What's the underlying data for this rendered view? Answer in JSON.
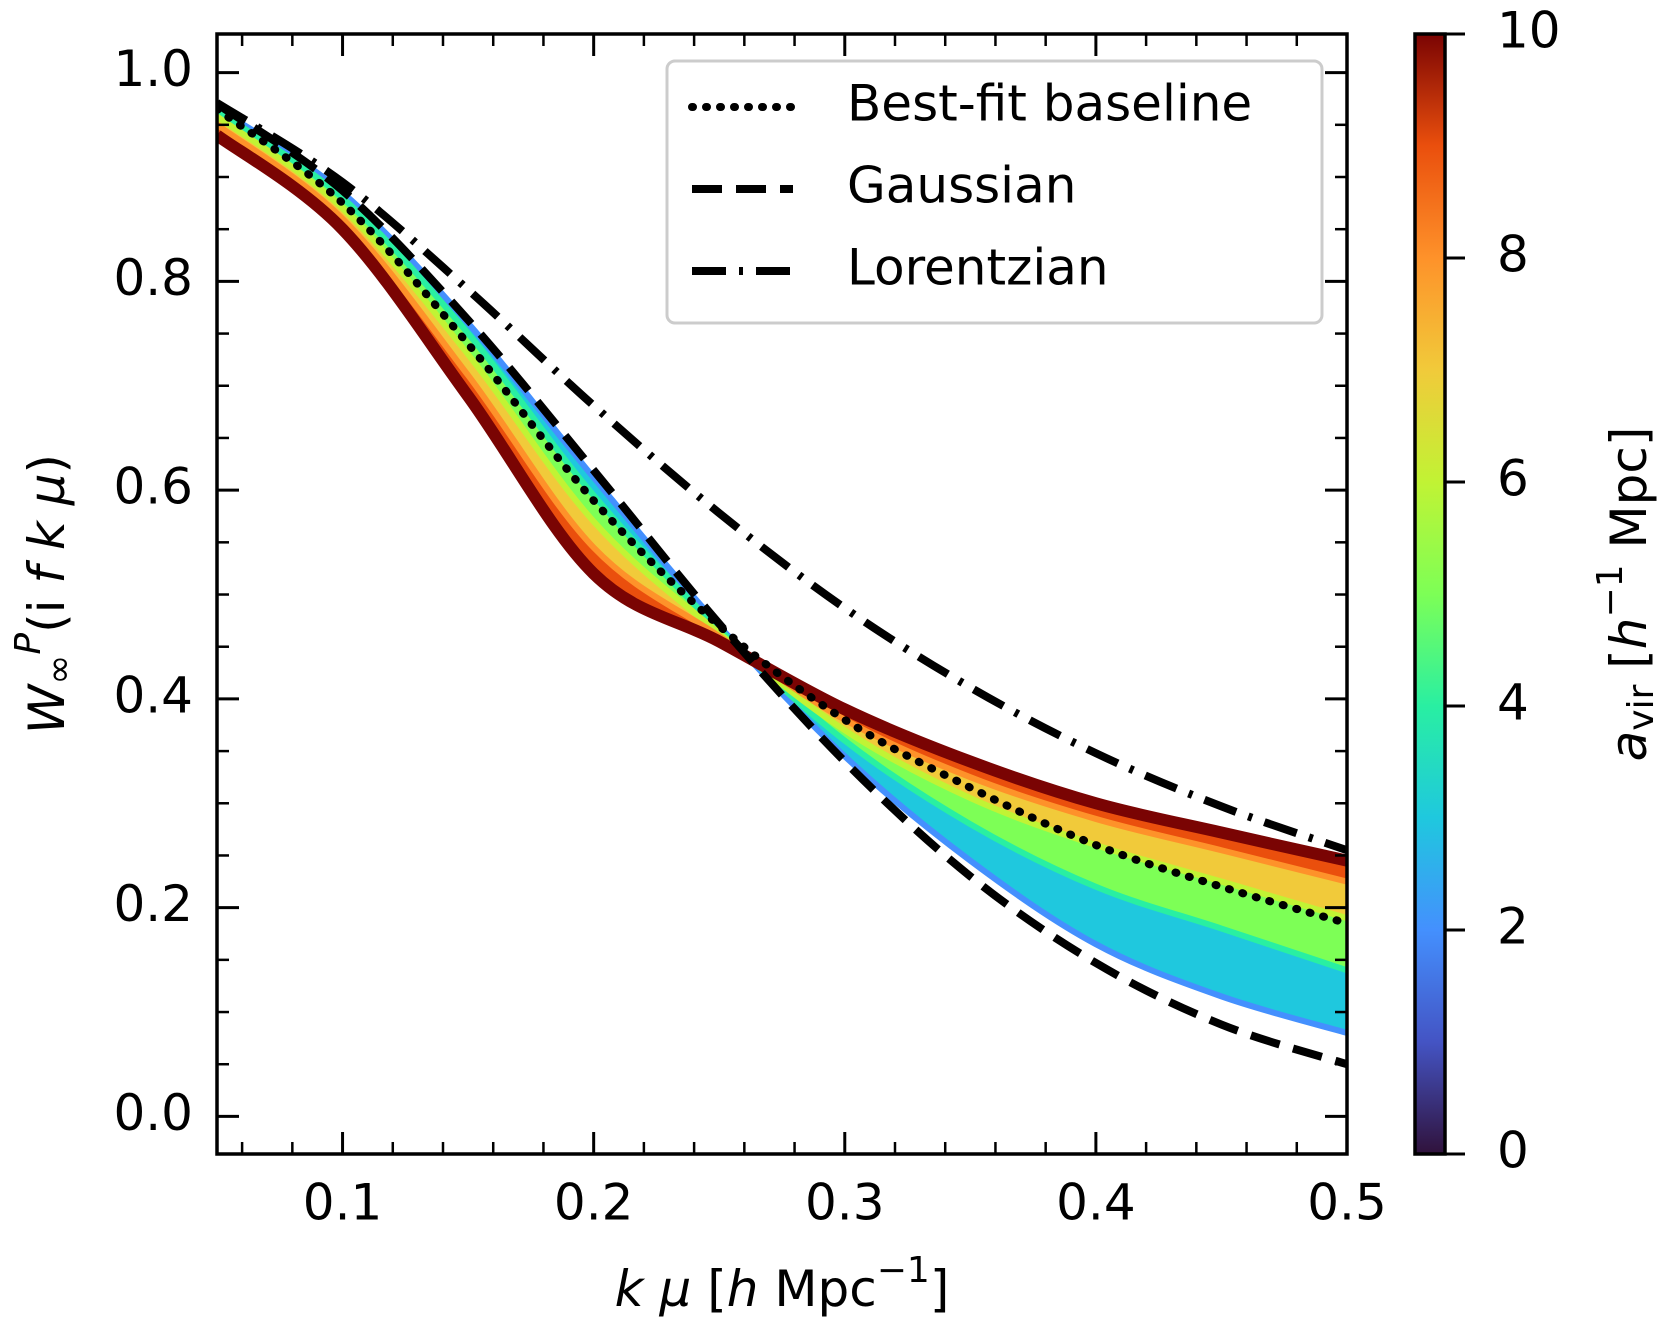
{
  "chart_data": {
    "type": "line",
    "x": [
      0.05,
      0.1,
      0.15,
      0.2,
      0.25,
      0.3,
      0.35,
      0.4,
      0.45,
      0.5
    ],
    "series": [
      {
        "name": "Best-fit baseline",
        "color": "#000000",
        "dash": "dotted",
        "values": [
          0.965,
          0.875,
          0.74,
          0.59,
          0.47,
          0.38,
          0.315,
          0.26,
          0.22,
          0.185
        ]
      },
      {
        "name": "Gaussian",
        "color": "#000000",
        "dash": "dashed",
        "values": [
          0.97,
          0.887,
          0.763,
          0.619,
          0.472,
          0.34,
          0.23,
          0.147,
          0.088,
          0.05
        ]
      },
      {
        "name": "Lorentzian",
        "color": "#000000",
        "dash": "dashdot",
        "values": [
          0.971,
          0.895,
          0.792,
          0.681,
          0.578,
          0.487,
          0.411,
          0.348,
          0.297,
          0.255
        ]
      }
    ],
    "band": [
      {
        "a_vir": 2,
        "values": [
          0.966,
          0.885,
          0.76,
          0.612,
          0.47,
          0.345,
          0.245,
          0.165,
          0.115,
          0.08
        ]
      },
      {
        "a_vir": 4,
        "values": [
          0.963,
          0.88,
          0.75,
          0.595,
          0.467,
          0.36,
          0.28,
          0.22,
          0.18,
          0.14
        ]
      },
      {
        "a_vir": 6,
        "values": [
          0.958,
          0.87,
          0.73,
          0.57,
          0.463,
          0.37,
          0.305,
          0.26,
          0.225,
          0.19
        ]
      },
      {
        "a_vir": 8,
        "values": [
          0.95,
          0.86,
          0.71,
          0.545,
          0.46,
          0.38,
          0.325,
          0.285,
          0.255,
          0.225
        ]
      },
      {
        "a_vir": 10,
        "values": [
          0.94,
          0.85,
          0.69,
          0.52,
          0.455,
          0.39,
          0.34,
          0.3,
          0.272,
          0.245
        ]
      }
    ],
    "xlim": [
      0.05,
      0.5
    ],
    "ylim": [
      -0.036,
      1.037
    ],
    "xticks": [
      0.1,
      0.2,
      0.3,
      0.4,
      0.5
    ],
    "yticks": [
      {
        "value": 0,
        "label": "0.0"
      },
      0.2,
      0.4,
      0.6,
      0.8,
      {
        "value": 1,
        "label": "1.0"
      }
    ],
    "xminorticks": [
      0.06,
      0.08,
      0.12,
      0.14,
      0.16,
      0.18,
      0.22,
      0.24,
      0.26,
      0.28,
      0.32,
      0.34,
      0.36,
      0.38,
      0.42,
      0.44,
      0.46,
      0.48
    ],
    "yminorticks": [
      0.05,
      0.1,
      0.15,
      0.25,
      0.3,
      0.35,
      0.45,
      0.5,
      0.55,
      0.65,
      0.7,
      0.75,
      0.85,
      0.9,
      0.95
    ],
    "xlabel": [
      {
        "text": "k",
        "italic": true
      },
      {
        "text": " μ",
        "italic": true
      },
      {
        "text": " ["
      },
      {
        "text": "h",
        "italic": true
      },
      {
        "text": " Mpc"
      },
      {
        "text": "−1",
        "shift": "sup"
      },
      {
        "text": "]"
      }
    ],
    "ylabel": [
      {
        "text": "W",
        "italic": true
      },
      {
        "text": "∞",
        "shift": "sub"
      },
      {
        "text": "P",
        "shift": "sup",
        "italic": true
      },
      {
        "text": "(i "
      },
      {
        "text": "f",
        "italic": true
      },
      {
        "text": " k",
        "italic": true
      },
      {
        "text": " μ",
        "italic": true
      },
      {
        "text": ")"
      }
    ],
    "legend": "upper right",
    "colorbar": {
      "clim": [
        0,
        10
      ],
      "ticks": [
        0,
        2,
        4,
        6,
        8,
        10
      ],
      "colormap": [
        "#30123b",
        "#4454c4",
        "#4490fe",
        "#1fc8de",
        "#29efa2",
        "#7dff56",
        "#c1f334",
        "#f1ca3a",
        "#fe922a",
        "#ea4f0d",
        "#7a0403"
      ],
      "label": [
        {
          "text": "a",
          "italic": true
        },
        {
          "text": "vir",
          "shift": "sub"
        },
        {
          "text": " ["
        },
        {
          "text": "h",
          "italic": true
        },
        {
          "text": "−1",
          "shift": "sup"
        },
        {
          "text": " Mpc]"
        }
      ]
    }
  }
}
